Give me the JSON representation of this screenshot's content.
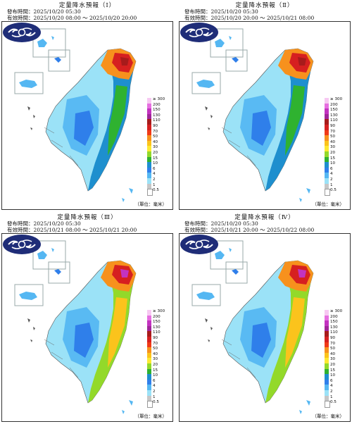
{
  "panels": [
    {
      "title": "定量降水預報（Ⅰ）",
      "issue": "發布時間：2025/10/20 05:30",
      "valid": "有效時間：2025/10/20 08:00 ～ 2025/10/20 20:00"
    },
    {
      "title": "定量降水預報（Ⅱ）",
      "issue": "發布時間：2025/10/20 05:30",
      "valid": "有效時間：2025/10/20 20:00 ～ 2025/10/21 08:00"
    },
    {
      "title": "定量降水預報（Ⅲ）",
      "issue": "發布時間：2025/10/20 05:30",
      "valid": "有效時間：2025/10/21 08:00 ～ 2025/10/21 20:00"
    },
    {
      "title": "定量降水預報（Ⅳ）",
      "issue": "發布時間：2025/10/20 05:30",
      "valid": "有效時間：2025/10/21 20:00 ～ 2025/10/22 08:00"
    }
  ],
  "legend": {
    "unit": "（單位：毫米）",
    "levels": [
      {
        "label": "≥ 300",
        "color": "#f7c8f2"
      },
      {
        "label": "200",
        "color": "#e66fe0"
      },
      {
        "label": "150",
        "color": "#c333c0"
      },
      {
        "label": "130",
        "color": "#a1259a"
      },
      {
        "label": "110",
        "color": "#a71b1b"
      },
      {
        "label": "90",
        "color": "#d62020"
      },
      {
        "label": "70",
        "color": "#f03a18"
      },
      {
        "label": "50",
        "color": "#f7911d"
      },
      {
        "label": "40",
        "color": "#fbc31c"
      },
      {
        "label": "30",
        "color": "#fde932"
      },
      {
        "label": "20",
        "color": "#93d92a"
      },
      {
        "label": "15",
        "color": "#2fb230"
      },
      {
        "label": "10",
        "color": "#1e8fce"
      },
      {
        "label": "6",
        "color": "#2f7fea"
      },
      {
        "label": "4",
        "color": "#55b7f2"
      },
      {
        "label": "2",
        "color": "#9be2f7"
      },
      {
        "label": "1",
        "color": "#c6c6c6"
      },
      {
        "label": "0.5",
        "color": "#ffffff"
      }
    ]
  },
  "intensity": [
    0.55,
    0.55,
    0.85,
    0.8
  ]
}
